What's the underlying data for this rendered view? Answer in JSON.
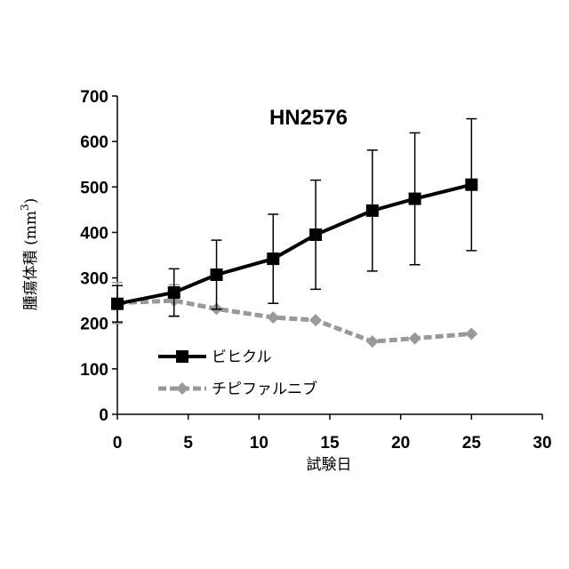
{
  "chart_data": {
    "type": "line",
    "title": "HN2576",
    "xlabel": "試験日",
    "ylabel": "腫瘍体積 (mm",
    "ylabel_superscript": "3",
    "ylabel_suffix": ")",
    "xlim": [
      0,
      30
    ],
    "ylim": [
      0,
      700
    ],
    "x_ticks": [
      0,
      5,
      10,
      15,
      20,
      25,
      30
    ],
    "y_ticks": [
      0,
      100,
      200,
      300,
      400,
      500,
      600,
      700
    ],
    "grid": false,
    "legend_position": "bottom-left",
    "series": [
      {
        "name": "ビヒクル",
        "color": "#000000",
        "marker": "square",
        "line_style": "solid",
        "x": [
          0,
          4,
          7,
          11,
          14,
          18,
          21,
          25
        ],
        "y": [
          243,
          268,
          307,
          342,
          395,
          448,
          474,
          505
        ],
        "error": [
          40,
          52,
          76,
          98,
          120,
          133,
          145,
          145
        ]
      },
      {
        "name": "チピファルニブ",
        "color": "#999999",
        "marker": "diamond",
        "line_style": "dashed",
        "x": [
          0,
          4,
          7,
          11,
          14,
          18,
          21,
          25
        ],
        "y": [
          245,
          250,
          232,
          213,
          207,
          160,
          167,
          177
        ],
        "error": [
          45,
          35,
          0,
          0,
          0,
          0,
          0,
          0
        ]
      }
    ]
  }
}
